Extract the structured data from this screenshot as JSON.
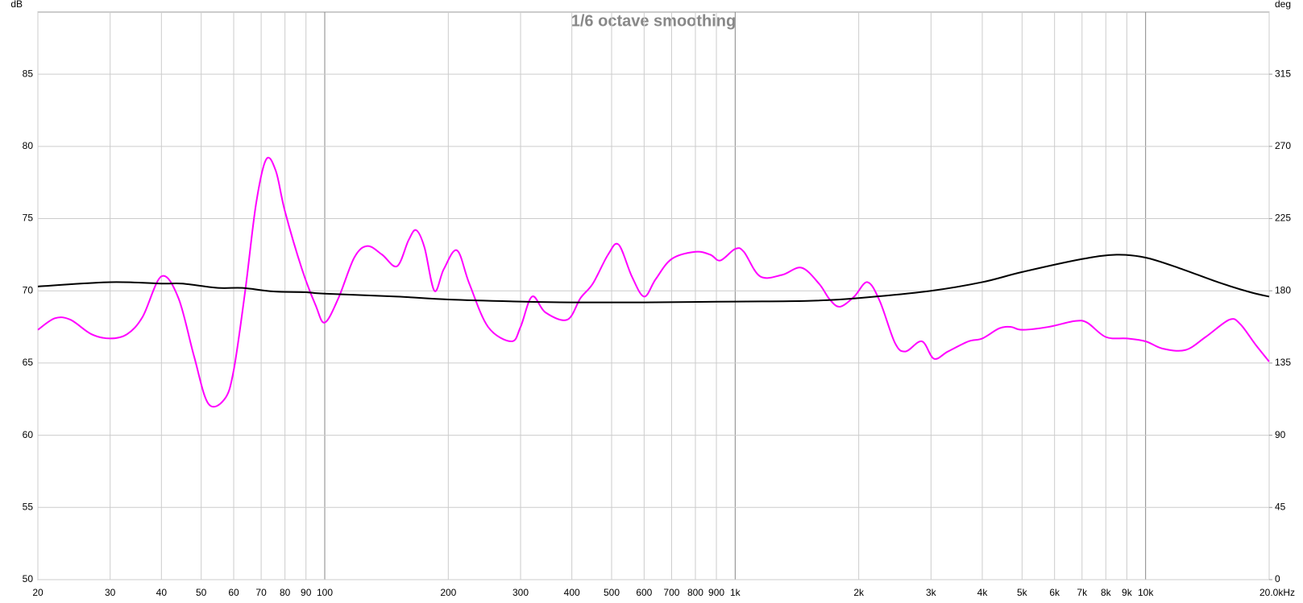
{
  "chart_data": {
    "type": "line",
    "title": "1/6 octave smoothing",
    "y_label": "dB",
    "y2_label": "deg",
    "xscale": "log",
    "xlim": [
      20,
      20000
    ],
    "xticks": [
      20,
      30,
      40,
      50,
      60,
      70,
      80,
      90,
      100,
      200,
      300,
      400,
      500,
      600,
      700,
      800,
      900,
      {
        "value": 1000,
        "label": "1k"
      },
      {
        "value": 2000,
        "label": "2k"
      },
      {
        "value": 3000,
        "label": "3k"
      },
      {
        "value": 4000,
        "label": "4k"
      },
      {
        "value": 5000,
        "label": "5k"
      },
      {
        "value": 6000,
        "label": "6k"
      },
      {
        "value": 7000,
        "label": "7k"
      },
      {
        "value": 8000,
        "label": "8k"
      },
      {
        "value": 9000,
        "label": "9k"
      },
      {
        "value": 10000,
        "label": "10k"
      },
      {
        "value": 20000,
        "label": "20.0kHz"
      }
    ],
    "ylim": [
      50,
      89.3
    ],
    "yticks": [
      50,
      55,
      60,
      65,
      70,
      75,
      80,
      85
    ],
    "y2lim": [
      0,
      353.7
    ],
    "y2ticks": [
      0,
      45,
      90,
      135,
      180,
      225,
      270,
      315
    ],
    "grid": true,
    "series": [
      {
        "color": "#ff00ff",
        "axis": "y",
        "x": [
          20,
          22,
          24,
          27,
          30,
          33,
          36,
          40,
          44,
          48,
          52,
          57,
          60,
          64,
          68,
          72,
          76,
          80,
          88,
          95,
          100,
          108,
          118,
          127,
          138,
          150,
          160,
          167,
          175,
          185,
          195,
          210,
          225,
          250,
          285,
          300,
          320,
          345,
          390,
          420,
          450,
          490,
          520,
          560,
          600,
          640,
          700,
          800,
          870,
          920,
          1000,
          1050,
          1150,
          1300,
          1450,
          1600,
          1700,
          1800,
          1950,
          2100,
          2250,
          2450,
          2600,
          2850,
          3050,
          3300,
          3700,
          4000,
          4400,
          4700,
          5000,
          5800,
          6700,
          7200,
          8000,
          9000,
          10000,
          11000,
          12500,
          14000,
          16000,
          17000,
          18500,
          20000
        ],
        "values": [
          67.3,
          68.1,
          68.0,
          67.0,
          66.7,
          67.0,
          68.2,
          71.0,
          69.5,
          65.5,
          62.2,
          62.5,
          64.5,
          70,
          76,
          79.1,
          78.3,
          75.5,
          71.5,
          69,
          67.8,
          69.5,
          72.3,
          73.1,
          72.5,
          71.7,
          73.5,
          74.2,
          73,
          70,
          71.5,
          72.8,
          70.5,
          67.5,
          66.5,
          67.5,
          69.6,
          68.5,
          68,
          69.5,
          70.5,
          72.5,
          73.2,
          71,
          69.6,
          70.8,
          72.2,
          72.7,
          72.5,
          72.1,
          72.9,
          72.7,
          71,
          71.1,
          71.6,
          70.5,
          69.4,
          68.9,
          69.6,
          70.6,
          69.3,
          66.4,
          65.8,
          66.5,
          65.3,
          65.8,
          66.5,
          66.7,
          67.4,
          67.5,
          67.3,
          67.5,
          67.9,
          67.8,
          66.8,
          66.7,
          66.5,
          66,
          65.9,
          66.8,
          68.0,
          67.7,
          66.3,
          65.1
        ]
      },
      {
        "color": "#000000",
        "axis": "y2",
        "x": [
          20,
          30,
          40,
          45,
          55,
          63,
          75,
          90,
          100,
          150,
          200,
          300,
          400,
          600,
          1000,
          1500,
          2000,
          3000,
          4000,
          5000,
          7000,
          8500,
          10000,
          12000,
          15000,
          18000,
          20000
        ],
        "values": [
          182.7,
          185.4,
          184.5,
          184.5,
          181.8,
          181.8,
          179.6,
          179.1,
          178.2,
          176.4,
          174.6,
          173.3,
          172.8,
          172.8,
          173.3,
          173.7,
          175.5,
          180,
          185.4,
          191.7,
          199.8,
          202.5,
          200.7,
          194.4,
          185.4,
          179.1,
          176.4
        ]
      }
    ]
  }
}
